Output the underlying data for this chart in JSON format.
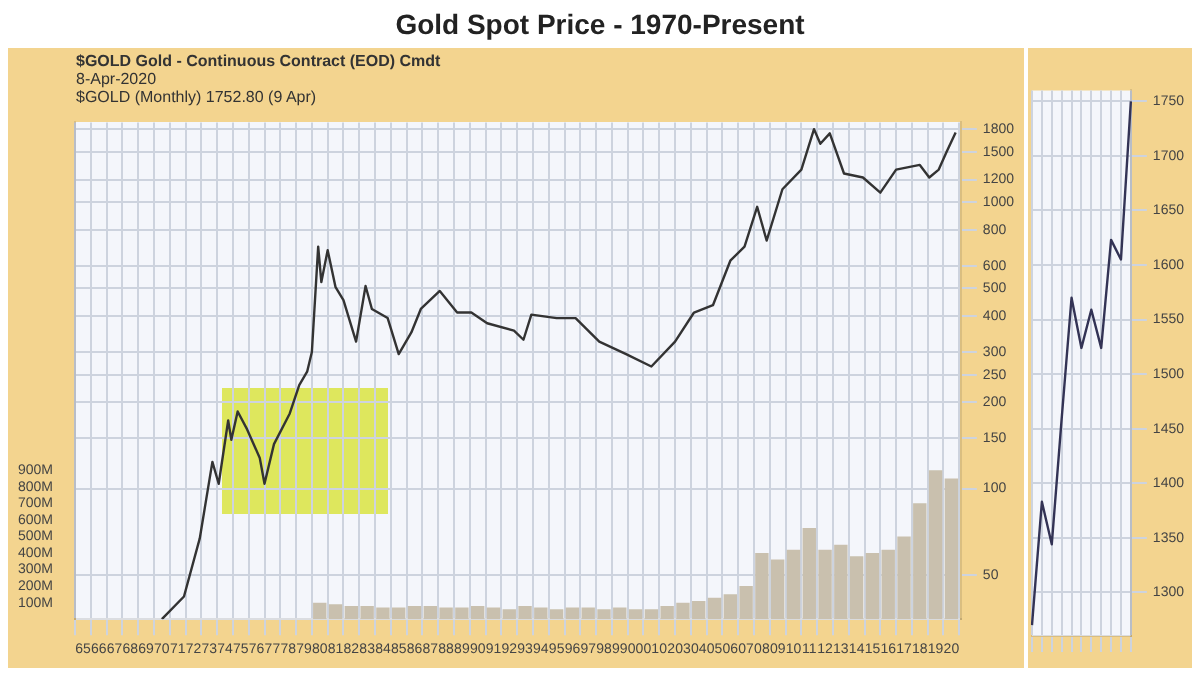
{
  "chart_data": [
    {
      "type": "line",
      "title": "Gold Spot Price - 1970-Present",
      "annotations": [
        "$GOLD Gold - Continuous Contract (EOD) Cmdt",
        "8-Apr-2020",
        "$GOLD (Monthly) 1752.80 (9 Apr)"
      ],
      "series": [
        {
          "type": "line",
          "color": "#333333",
          "x": [
            1970,
            1971.4,
            1972.4,
            1973.2,
            1973.6,
            1974.2,
            1974.4,
            1974.8,
            1975.4,
            1976.2,
            1976.5,
            1977.1,
            1978.1,
            1978.7,
            1979.2,
            1979.5,
            1979.9,
            1980.1,
            1980.5,
            1981,
            1981.5,
            1982.3,
            1982.9,
            1983.3,
            1984.3,
            1985,
            1985.8,
            1986.4,
            1987.6,
            1988.7,
            1989.6,
            1990.6,
            1992.3,
            1992.9,
            1993.4,
            1995,
            1996.2,
            1997.7,
            1999.4,
            2001,
            2002.5,
            2003.7,
            2004.9,
            2006,
            2006.9,
            2007.7,
            2008.3,
            2009.3,
            2010.5,
            2011.3,
            2011.7,
            2012.3,
            2013.2,
            2014.4,
            2015.5,
            2016.5,
            2018,
            2018.6,
            2019.2,
            2019.7,
            2020.27
          ],
          "values": [
            35,
            42,
            67,
            124,
            104,
            173,
            148,
            186,
            161,
            128,
            104,
            143,
            183,
            230,
            256,
            300,
            700,
            526,
            680,
            505,
            455,
            326,
            510,
            424,
            394,
            295,
            351,
            424,
            490,
            412,
            412,
            378,
            356,
            331,
            405,
            394,
            394,
            326,
            295,
            267,
            326,
            412,
            437,
            625,
            700,
            964,
            735,
            1110,
            1300,
            1800,
            1600,
            1740,
            1260,
            1220,
            1080,
            1300,
            1350,
            1220,
            1300,
            1500,
            1752.8
          ]
        },
        {
          "type": "bar",
          "axis": "y2",
          "color": "#c9c0ae",
          "x": [
            1980,
            1981,
            1982,
            1983,
            1984,
            1985,
            1986,
            1987,
            1988,
            1989,
            1990,
            1991,
            1992,
            1993,
            1994,
            1995,
            1996,
            1997,
            1998,
            1999,
            2000,
            2001,
            2002,
            2003,
            2004,
            2005,
            2006,
            2007,
            2008,
            2009,
            2010,
            2011,
            2012,
            2013,
            2014,
            2015,
            2016,
            2017,
            2018,
            2019,
            2020
          ],
          "values": [
            100,
            90,
            80,
            80,
            70,
            70,
            80,
            80,
            70,
            70,
            80,
            70,
            60,
            80,
            70,
            60,
            70,
            70,
            60,
            70,
            60,
            60,
            80,
            100,
            110,
            130,
            150,
            200,
            400,
            360,
            420,
            550,
            420,
            450,
            380,
            400,
            420,
            500,
            700,
            900,
            850
          ]
        }
      ],
      "xlim": [
        1964.5,
        2020.6
      ],
      "xticks": [
        {
          "value": 1965,
          "label": "65"
        },
        {
          "value": 1966,
          "label": "66"
        },
        {
          "value": 1967,
          "label": "67"
        },
        {
          "value": 1968,
          "label": "68"
        },
        {
          "value": 1969,
          "label": "69"
        },
        {
          "value": 1970,
          "label": "70"
        },
        {
          "value": 1971,
          "label": "71"
        },
        {
          "value": 1972,
          "label": "72"
        },
        {
          "value": 1973,
          "label": "73"
        },
        {
          "value": 1974,
          "label": "74"
        },
        {
          "value": 1975,
          "label": "75"
        },
        {
          "value": 1976,
          "label": "76"
        },
        {
          "value": 1977,
          "label": "77"
        },
        {
          "value": 1978,
          "label": "78"
        },
        {
          "value": 1979,
          "label": "79"
        },
        {
          "value": 1980,
          "label": "80"
        },
        {
          "value": 1981,
          "label": "81"
        },
        {
          "value": 1982,
          "label": "82"
        },
        {
          "value": 1983,
          "label": "83"
        },
        {
          "value": 1984,
          "label": "84"
        },
        {
          "value": 1985,
          "label": "85"
        },
        {
          "value": 1986,
          "label": "86"
        },
        {
          "value": 1987,
          "label": "87"
        },
        {
          "value": 1988,
          "label": "88"
        },
        {
          "value": 1989,
          "label": "89"
        },
        {
          "value": 1990,
          "label": "90"
        },
        {
          "value": 1991,
          "label": "91"
        },
        {
          "value": 1992,
          "label": "92"
        },
        {
          "value": 1993,
          "label": "93"
        },
        {
          "value": 1994,
          "label": "94"
        },
        {
          "value": 1995,
          "label": "95"
        },
        {
          "value": 1996,
          "label": "96"
        },
        {
          "value": 1997,
          "label": "97"
        },
        {
          "value": 1998,
          "label": "98"
        },
        {
          "value": 1999,
          "label": "99"
        },
        {
          "value": 2000,
          "label": "00"
        },
        {
          "value": 2001,
          "label": "01"
        },
        {
          "value": 2002,
          "label": "02"
        },
        {
          "value": 2003,
          "label": "03"
        },
        {
          "value": 2004,
          "label": "04"
        },
        {
          "value": 2005,
          "label": "05"
        },
        {
          "value": 2006,
          "label": "06"
        },
        {
          "value": 2007,
          "label": "07"
        },
        {
          "value": 2008,
          "label": "08"
        },
        {
          "value": 2009,
          "label": "09"
        },
        {
          "value": 2010,
          "label": "10"
        },
        {
          "value": 2011,
          "label": "11"
        },
        {
          "value": 2012,
          "label": "12"
        },
        {
          "value": 2013,
          "label": "13"
        },
        {
          "value": 2014,
          "label": "14"
        },
        {
          "value": 2015,
          "label": "15"
        },
        {
          "value": 2016,
          "label": "16"
        },
        {
          "value": 2017,
          "label": "17"
        },
        {
          "value": 2018,
          "label": "18"
        },
        {
          "value": 2019,
          "label": "19"
        },
        {
          "value": 2020,
          "label": "20"
        }
      ],
      "ylim": [
        35,
        1900
      ],
      "yticks": [
        50,
        100,
        150,
        200,
        250,
        300,
        400,
        500,
        600,
        800,
        1000,
        1200,
        1500,
        1800
      ],
      "y2lim": [
        0,
        3000
      ],
      "y2ticks": [
        {
          "value": 100,
          "label": "100M"
        },
        {
          "value": 200,
          "label": "200M"
        },
        {
          "value": 300,
          "label": "300M"
        },
        {
          "value": 400,
          "label": "400M"
        },
        {
          "value": 500,
          "label": "500M"
        },
        {
          "value": 600,
          "label": "600M"
        },
        {
          "value": 700,
          "label": "700M"
        },
        {
          "value": 800,
          "label": "800M"
        },
        {
          "value": 900,
          "label": "900M"
        }
      ],
      "log": "y",
      "grid": true
    },
    {
      "type": "line",
      "color": "#333355",
      "categories": [
        null,
        null,
        null,
        null,
        null,
        null,
        null,
        null,
        null,
        null,
        null
      ],
      "values": [
        1270,
        1383,
        1344,
        1459,
        1570,
        1524,
        1559,
        1524,
        1623,
        1605,
        1750
      ],
      "ylim": [
        1260,
        1760
      ],
      "yticks": [
        1300,
        1350,
        1400,
        1450,
        1500,
        1550,
        1600,
        1650,
        1700,
        1750
      ],
      "tick_labels": "y",
      "grid": true
    }
  ]
}
